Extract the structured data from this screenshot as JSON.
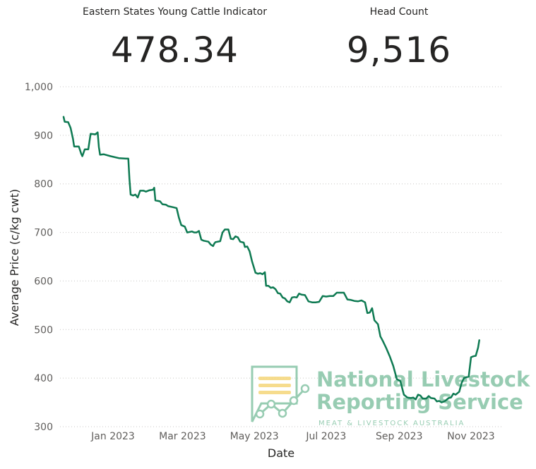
{
  "cards": [
    {
      "label": "Eastern States Young Cattle Indicator",
      "value": "478.34"
    },
    {
      "label": "Head Count",
      "value": "9,516"
    }
  ],
  "watermark": {
    "line1": "National Livestock",
    "line2": "Reporting Service",
    "sub": "MEAT & LIVESTOCK AUSTRALIA"
  },
  "colors": {
    "line": "#0e7a52",
    "watermark": "#86c4a5",
    "watermark_bars": "#f5d77a"
  },
  "chart_data": {
    "type": "line",
    "xlabel": "Date",
    "ylabel": "Average Price (c/kg cwt)",
    "ylim": [
      300,
      1000
    ],
    "yticks": [
      1000,
      900,
      800,
      700,
      600,
      500,
      400,
      300
    ],
    "ytick_labels": [
      "1,000",
      "900",
      "800",
      "700",
      "600",
      "500",
      "400",
      "300"
    ],
    "xticks": [
      {
        "date": "2023-01-01",
        "label": "Jan 2023"
      },
      {
        "date": "2023-03-01",
        "label": "Mar 2023"
      },
      {
        "date": "2023-05-01",
        "label": "May 2023"
      },
      {
        "date": "2023-07-01",
        "label": "Jul 2023"
      },
      {
        "date": "2023-09-01",
        "label": "Sep 2023"
      },
      {
        "date": "2023-11-01",
        "label": "Nov 2023"
      }
    ],
    "grid": true,
    "series": [
      {
        "points": [
          [
            "2022-11-20",
            938
          ],
          [
            "2022-11-21",
            928
          ],
          [
            "2022-11-24",
            927
          ],
          [
            "2022-11-26",
            915
          ],
          [
            "2022-11-28",
            893
          ],
          [
            "2022-11-29",
            877
          ],
          [
            "2022-12-03",
            877
          ],
          [
            "2022-12-05",
            862
          ],
          [
            "2022-12-06",
            857
          ],
          [
            "2022-12-08",
            871
          ],
          [
            "2022-12-11",
            871
          ],
          [
            "2022-12-13",
            903
          ],
          [
            "2022-12-17",
            902
          ],
          [
            "2022-12-19",
            906
          ],
          [
            "2022-12-20",
            876
          ],
          [
            "2022-12-21",
            860
          ],
          [
            "2022-12-24",
            861
          ],
          [
            "2022-12-30",
            857
          ],
          [
            "2023-01-06",
            853
          ],
          [
            "2023-01-12",
            852
          ],
          [
            "2023-01-14",
            852
          ],
          [
            "2023-01-15",
            810
          ],
          [
            "2023-01-16",
            778
          ],
          [
            "2023-01-18",
            776
          ],
          [
            "2023-01-20",
            778
          ],
          [
            "2023-01-22",
            772
          ],
          [
            "2023-01-24",
            786
          ],
          [
            "2023-01-27",
            786
          ],
          [
            "2023-01-29",
            784
          ],
          [
            "2023-02-01",
            787
          ],
          [
            "2023-02-04",
            788
          ],
          [
            "2023-02-05",
            792
          ],
          [
            "2023-02-06",
            766
          ],
          [
            "2023-02-10",
            764
          ],
          [
            "2023-02-12",
            758
          ],
          [
            "2023-02-15",
            757
          ],
          [
            "2023-02-17",
            754
          ],
          [
            "2023-02-21",
            752
          ],
          [
            "2023-02-24",
            750
          ],
          [
            "2023-02-26",
            730
          ],
          [
            "2023-02-28",
            715
          ],
          [
            "2023-03-03",
            712
          ],
          [
            "2023-03-05",
            700
          ],
          [
            "2023-03-09",
            702
          ],
          [
            "2023-03-11",
            700
          ],
          [
            "2023-03-13",
            700
          ],
          [
            "2023-03-15",
            703
          ],
          [
            "2023-03-17",
            685
          ],
          [
            "2023-03-19",
            683
          ],
          [
            "2023-03-23",
            681
          ],
          [
            "2023-03-25",
            675
          ],
          [
            "2023-03-27",
            672
          ],
          [
            "2023-03-28",
            677
          ],
          [
            "2023-03-29",
            680
          ],
          [
            "2023-04-02",
            682
          ],
          [
            "2023-04-04",
            700
          ],
          [
            "2023-04-06",
            706
          ],
          [
            "2023-04-09",
            706
          ],
          [
            "2023-04-11",
            687
          ],
          [
            "2023-04-13",
            686
          ],
          [
            "2023-04-15",
            692
          ],
          [
            "2023-04-17",
            690
          ],
          [
            "2023-04-19",
            681
          ],
          [
            "2023-04-22",
            679
          ],
          [
            "2023-04-23",
            670
          ],
          [
            "2023-04-25",
            671
          ],
          [
            "2023-04-27",
            661
          ],
          [
            "2023-04-29",
            641
          ],
          [
            "2023-05-02",
            617
          ],
          [
            "2023-05-04",
            615
          ],
          [
            "2023-05-06",
            616
          ],
          [
            "2023-05-08",
            614
          ],
          [
            "2023-05-10",
            618
          ],
          [
            "2023-05-11",
            590
          ],
          [
            "2023-05-13",
            590
          ],
          [
            "2023-05-15",
            586
          ],
          [
            "2023-05-17",
            587
          ],
          [
            "2023-05-19",
            583
          ],
          [
            "2023-05-21",
            575
          ],
          [
            "2023-05-23",
            574
          ],
          [
            "2023-05-25",
            566
          ],
          [
            "2023-05-27",
            564
          ],
          [
            "2023-05-29",
            558
          ],
          [
            "2023-05-31",
            556
          ],
          [
            "2023-06-02",
            566
          ],
          [
            "2023-06-04",
            567
          ],
          [
            "2023-06-06",
            566
          ],
          [
            "2023-06-08",
            574
          ],
          [
            "2023-06-10",
            572
          ],
          [
            "2023-06-13",
            571
          ],
          [
            "2023-06-16",
            558
          ],
          [
            "2023-06-19",
            556
          ],
          [
            "2023-06-22",
            556
          ],
          [
            "2023-06-25",
            557
          ],
          [
            "2023-06-28",
            569
          ],
          [
            "2023-07-01",
            568
          ],
          [
            "2023-07-04",
            569
          ],
          [
            "2023-07-07",
            569
          ],
          [
            "2023-07-10",
            576
          ],
          [
            "2023-07-13",
            576
          ],
          [
            "2023-07-16",
            576
          ],
          [
            "2023-07-19",
            562
          ],
          [
            "2023-07-22",
            561
          ],
          [
            "2023-07-25",
            559
          ],
          [
            "2023-07-28",
            558
          ],
          [
            "2023-07-31",
            560
          ],
          [
            "2023-08-03",
            556
          ],
          [
            "2023-08-05",
            534
          ],
          [
            "2023-08-07",
            535
          ],
          [
            "2023-08-09",
            544
          ],
          [
            "2023-08-11",
            519
          ],
          [
            "2023-08-14",
            511
          ],
          [
            "2023-08-16",
            486
          ],
          [
            "2023-08-18",
            477
          ],
          [
            "2023-08-21",
            462
          ],
          [
            "2023-08-24",
            445
          ],
          [
            "2023-08-27",
            425
          ],
          [
            "2023-08-30",
            398
          ],
          [
            "2023-09-02",
            394
          ],
          [
            "2023-09-05",
            366
          ],
          [
            "2023-09-08",
            360
          ],
          [
            "2023-09-11",
            359
          ],
          [
            "2023-09-13",
            360
          ],
          [
            "2023-09-15",
            356
          ],
          [
            "2023-09-17",
            366
          ],
          [
            "2023-09-19",
            364
          ],
          [
            "2023-09-21",
            358
          ],
          [
            "2023-09-24",
            358
          ],
          [
            "2023-09-26",
            363
          ],
          [
            "2023-09-28",
            359
          ],
          [
            "2023-10-01",
            358
          ],
          [
            "2023-10-03",
            352
          ],
          [
            "2023-10-05",
            353
          ],
          [
            "2023-10-07",
            350
          ],
          [
            "2023-10-10",
            353
          ],
          [
            "2023-10-13",
            359
          ],
          [
            "2023-10-15",
            360
          ],
          [
            "2023-10-17",
            368
          ],
          [
            "2023-10-19",
            366
          ],
          [
            "2023-10-22",
            372
          ],
          [
            "2023-10-24",
            390
          ],
          [
            "2023-10-26",
            400
          ],
          [
            "2023-10-28",
            402
          ],
          [
            "2023-10-30",
            403
          ],
          [
            "2023-11-01",
            443
          ],
          [
            "2023-11-03",
            445
          ],
          [
            "2023-11-05",
            446
          ],
          [
            "2023-11-07",
            463
          ],
          [
            "2023-11-08",
            478
          ]
        ]
      }
    ]
  }
}
